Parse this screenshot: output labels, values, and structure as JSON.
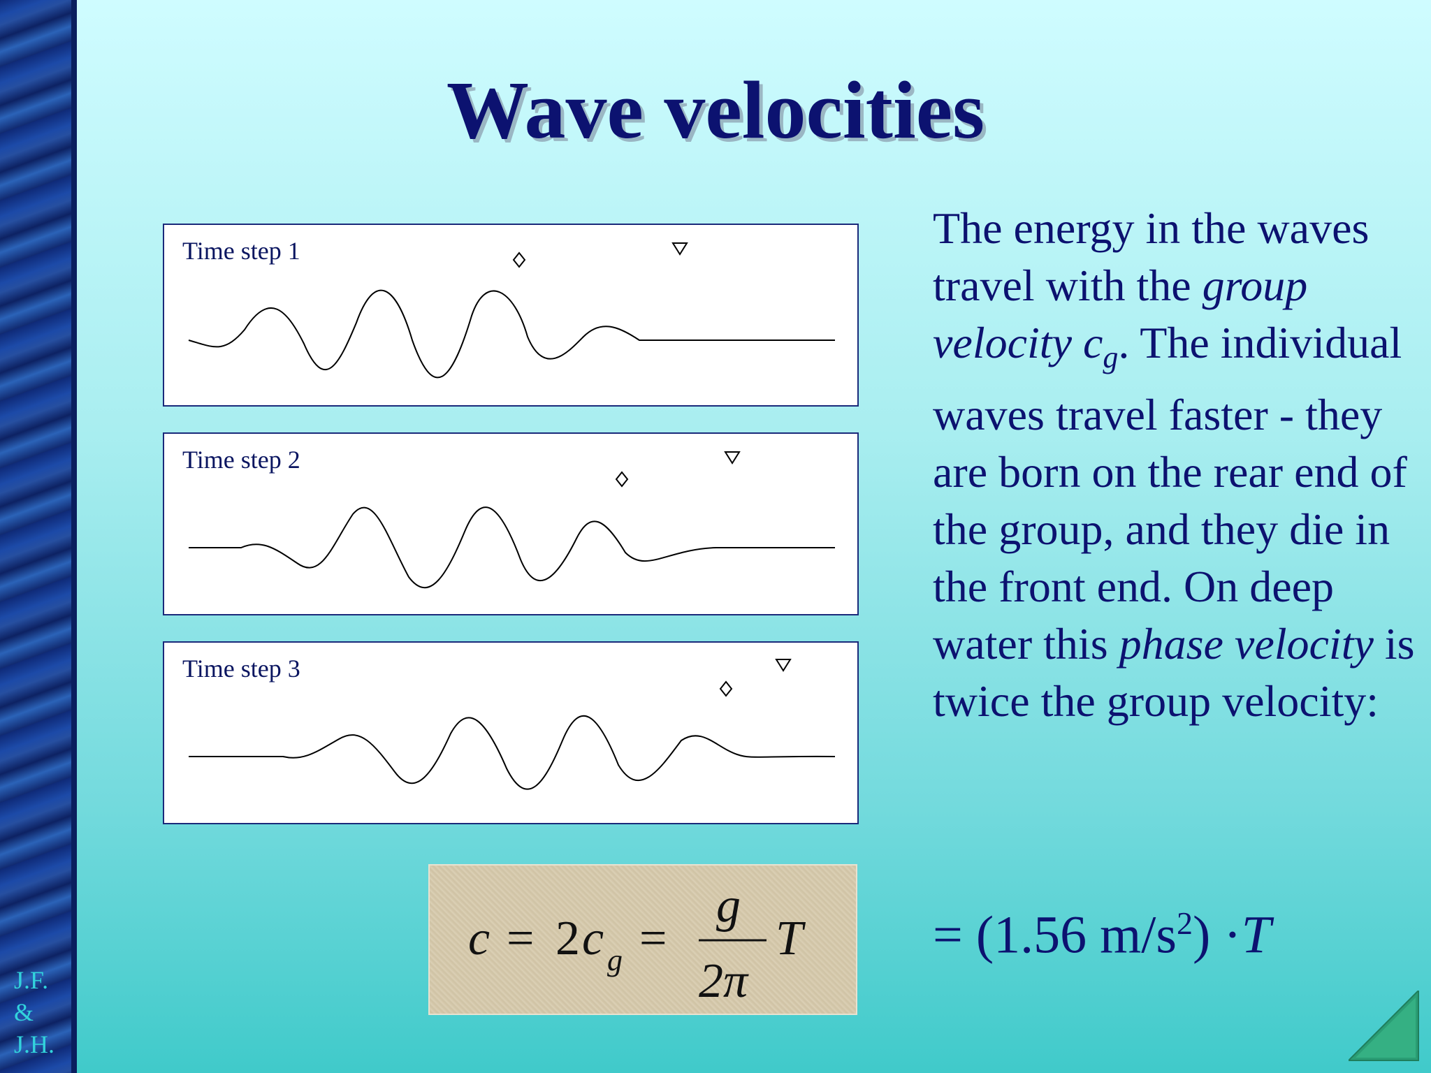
{
  "title": "Wave velocities",
  "initials": [
    "J.F.",
    "&",
    "J.H."
  ],
  "panels": [
    {
      "label": "Time step 1"
    },
    {
      "label": "Time step 2"
    },
    {
      "label": "Time step 3"
    }
  ],
  "body": {
    "t1": "The energy in the waves travel with the ",
    "t2_italic": "group velocity c",
    "t2_sub": "g",
    "t3": ".  The individual waves travel faster - they are born on the rear end of the group, and they die in the front end.  On deep water this ",
    "t4_italic": "phase velocity",
    "t5": " is twice the group velocity:"
  },
  "formula": {
    "c": "c",
    "eq1": "=",
    "two": "2",
    "cg": "c",
    "g_sub": "g",
    "eq2": "=",
    "num": "g",
    "den": "2π",
    "T": "T"
  },
  "result": {
    "prefix": "= (1.56 m/s",
    "sup": "2",
    "suffix": ") ·",
    "T": "T"
  },
  "colors": {
    "text": "#0c1270",
    "initials": "#32d3dc",
    "nav": "#2a9d74"
  },
  "icons": {
    "nav": "next-slide-triangle-icon",
    "diamond": "diamond-marker-icon",
    "triangle": "triangle-marker-icon"
  }
}
